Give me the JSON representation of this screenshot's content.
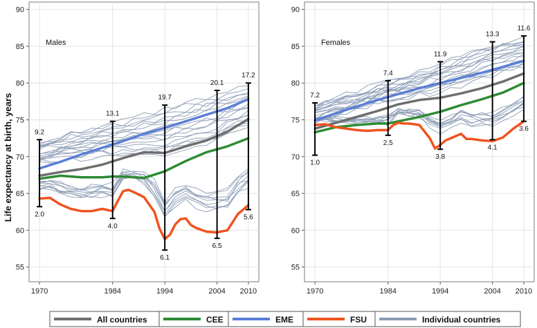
{
  "chart_data": {
    "type": "line",
    "ylabel": "Life expectancy at birth, years",
    "ylim": [
      53,
      91
    ],
    "xlim": [
      1968,
      2012
    ],
    "y_ticks": [
      55,
      60,
      65,
      70,
      75,
      80,
      85,
      90
    ],
    "x_ticks": [
      1970,
      1984,
      1994,
      2004,
      2010
    ],
    "grid": true,
    "legend": {
      "placement": "bottom",
      "entries": [
        {
          "name": "All countries",
          "color": "#6e6e6e"
        },
        {
          "name": "CEE",
          "color": "#2e8b34"
        },
        {
          "name": "EME",
          "color": "#5b7fd6"
        },
        {
          "name": "FSU",
          "color": "#f0531f"
        },
        {
          "name": "Individual countries",
          "color": "#8a9bb5"
        }
      ]
    },
    "panels": [
      {
        "title": "Males",
        "series": [
          {
            "name": "All countries",
            "x": [
              1970,
              1974,
              1978,
              1982,
              1986,
              1990,
              1994,
              1998,
              2002,
              2006,
              2010
            ],
            "y": [
              67.4,
              67.9,
              68.3,
              68.9,
              69.8,
              70.6,
              70.5,
              71.4,
              72.2,
              73.4,
              75.1
            ]
          },
          {
            "name": "CEE",
            "x": [
              1970,
              1974,
              1978,
              1982,
              1984,
              1986,
              1990,
              1994,
              1998,
              2002,
              2006,
              2010
            ],
            "y": [
              67.0,
              67.4,
              67.2,
              67.2,
              67.3,
              67.3,
              67.1,
              68.0,
              69.4,
              70.6,
              71.4,
              72.5
            ]
          },
          {
            "name": "EME",
            "x": [
              1970,
              1974,
              1978,
              1982,
              1986,
              1990,
              1994,
              1998,
              2002,
              2006,
              2010
            ],
            "y": [
              68.4,
              69.3,
              70.3,
              71.2,
              72.1,
              73.1,
              73.9,
              74.8,
              75.7,
              76.6,
              77.8
            ]
          },
          {
            "name": "FSU",
            "x": [
              1970,
              1972,
              1974,
              1976,
              1978,
              1980,
              1982,
              1984,
              1985,
              1986,
              1987,
              1988,
              1990,
              1992,
              1993,
              1994,
              1995,
              1996,
              1997,
              1998,
              1999,
              2000,
              2002,
              2004,
              2006,
              2008,
              2010
            ],
            "y": [
              64.3,
              64.4,
              63.5,
              62.9,
              62.6,
              62.6,
              62.9,
              62.6,
              64.0,
              65.3,
              65.5,
              65.2,
              64.5,
              62.5,
              60.2,
              58.8,
              59.4,
              60.8,
              61.5,
              61.6,
              60.7,
              60.3,
              59.8,
              59.7,
              60.0,
              62.2,
              63.4
            ]
          }
        ],
        "ranges": [
          {
            "x": 1970,
            "low": 63.2,
            "high": 72.3,
            "top_label": "9.2",
            "bottom_label": "2.0"
          },
          {
            "x": 1984,
            "low": 61.6,
            "high": 74.8,
            "top_label": "13.1",
            "bottom_label": "4.0"
          },
          {
            "x": 1994,
            "low": 57.3,
            "high": 77.0,
            "top_label": "19.7",
            "bottom_label": "6.1"
          },
          {
            "x": 2004,
            "low": 58.9,
            "high": 79.0,
            "top_label": "20.1",
            "bottom_label": "6.5"
          },
          {
            "x": 2010,
            "low": 62.8,
            "high": 80.0,
            "top_label": "17.2",
            "bottom_label": "5.6"
          }
        ]
      },
      {
        "title": "Females",
        "series": [
          {
            "name": "All countries",
            "x": [
              1970,
              1974,
              1978,
              1982,
              1986,
              1990,
              1994,
              1998,
              2002,
              2006,
              2010
            ],
            "y": [
              73.8,
              74.6,
              75.4,
              76.2,
              77.1,
              77.7,
              78.0,
              78.6,
              79.3,
              80.2,
              81.3
            ]
          },
          {
            "name": "CEE",
            "x": [
              1970,
              1974,
              1978,
              1982,
              1984,
              1986,
              1990,
              1994,
              1998,
              2002,
              2006,
              2010
            ],
            "y": [
              73.3,
              74.0,
              74.3,
              74.5,
              74.5,
              74.8,
              75.4,
              76.1,
              77.0,
              77.8,
              78.7,
              80.0
            ]
          },
          {
            "name": "EME",
            "x": [
              1970,
              1974,
              1978,
              1982,
              1986,
              1990,
              1994,
              1998,
              2002,
              2006,
              2010
            ],
            "y": [
              74.9,
              75.9,
              76.8,
              77.7,
              78.5,
              79.3,
              80.0,
              80.7,
              81.4,
              82.2,
              83.0
            ]
          },
          {
            "name": "FSU",
            "x": [
              1970,
              1972,
              1974,
              1976,
              1978,
              1980,
              1982,
              1984,
              1985,
              1986,
              1987,
              1988,
              1990,
              1992,
              1993,
              1994,
              1995,
              1996,
              1997,
              1998,
              1999,
              2000,
              2002,
              2004,
              2006,
              2008,
              2010
            ],
            "y": [
              74.3,
              74.4,
              74.0,
              73.8,
              73.6,
              73.5,
              73.6,
              73.6,
              74.3,
              74.6,
              74.5,
              74.5,
              74.3,
              72.5,
              71.1,
              71.6,
              72.2,
              72.5,
              72.8,
              73.1,
              72.4,
              72.4,
              72.2,
              72.1,
              72.6,
              73.8,
              74.8
            ]
          }
        ],
        "ranges": [
          {
            "x": 1970,
            "low": 70.2,
            "high": 77.3,
            "top_label": "7.2",
            "bottom_label": "1.0"
          },
          {
            "x": 1984,
            "low": 72.9,
            "high": 80.3,
            "top_label": "7.4",
            "bottom_label": "2.5"
          },
          {
            "x": 1994,
            "low": 71.0,
            "high": 82.9,
            "top_label": "11.9",
            "bottom_label": "3.8"
          },
          {
            "x": 2004,
            "low": 72.3,
            "high": 85.6,
            "top_label": "13.3",
            "bottom_label": "4.1"
          },
          {
            "x": 2010,
            "low": 74.8,
            "high": 86.4,
            "top_label": "11.6",
            "bottom_label": "3.6"
          }
        ]
      }
    ]
  }
}
